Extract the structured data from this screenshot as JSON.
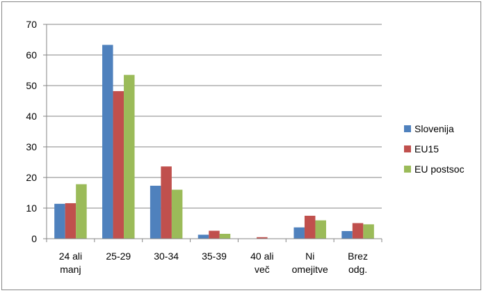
{
  "chart_data": {
    "type": "bar",
    "title": "",
    "xlabel": "",
    "ylabel": "",
    "categories": [
      [
        "24 ali",
        "manj"
      ],
      [
        "25-29"
      ],
      [
        "30-34"
      ],
      [
        "35-39"
      ],
      [
        "40 ali",
        "več"
      ],
      [
        "Ni",
        "omejitve"
      ],
      [
        "Brez",
        "odg."
      ]
    ],
    "series": [
      {
        "name": "Slovenija",
        "color": "#4f81bd",
        "values": [
          11.4,
          63.3,
          17.3,
          1.3,
          0,
          3.7,
          2.5
        ]
      },
      {
        "name": "EU15",
        "color": "#c0504d",
        "values": [
          11.6,
          48.2,
          23.6,
          2.6,
          0.5,
          7.5,
          5.1
        ]
      },
      {
        "name": "EU postsoc",
        "color": "#9bbb59",
        "values": [
          17.8,
          53.5,
          16.0,
          1.6,
          0,
          6.0,
          4.7
        ]
      }
    ],
    "ylim": [
      0,
      70
    ],
    "yticks": [
      0,
      10,
      20,
      30,
      40,
      50,
      60,
      70
    ],
    "grid": true,
    "legend_position": "right"
  }
}
